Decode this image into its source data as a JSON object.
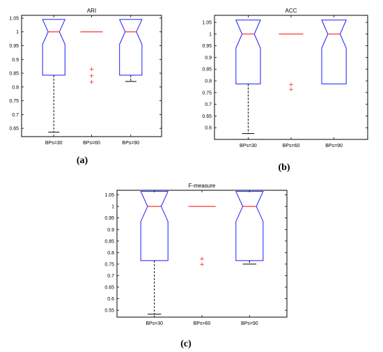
{
  "chart_data": [
    {
      "type": "boxplot",
      "title": "ARI",
      "caption": "(a)",
      "categories": [
        "BPs=30",
        "BPs=60",
        "BPs=90"
      ],
      "ylim": [
        0.62,
        1.06
      ],
      "yticks": [
        0.65,
        0.7,
        0.75,
        0.8,
        0.85,
        0.9,
        0.95,
        1,
        1.05
      ],
      "ytick_labels": [
        "0.65",
        "0.7",
        "0.75",
        "0.8",
        "0.85",
        "0.9",
        "0.95",
        "1",
        "1.05"
      ],
      "boxes": [
        {
          "q1": 0.843,
          "median": 1.0,
          "q3": 1.0,
          "whisker_low": 0.636,
          "whisker_high": 1.0,
          "notch_low": 0.955,
          "notch_high": 1.045,
          "outliers": []
        },
        {
          "q1": 1.0,
          "median": 1.0,
          "q3": 1.0,
          "whisker_low": 1.0,
          "whisker_high": 1.0,
          "notch_low": 1.0,
          "notch_high": 1.0,
          "outliers": [
            0.866,
            0.843,
            0.82
          ]
        },
        {
          "q1": 0.843,
          "median": 1.0,
          "q3": 1.0,
          "whisker_low": 0.82,
          "whisker_high": 1.0,
          "notch_low": 0.955,
          "notch_high": 1.045,
          "outliers": []
        }
      ]
    },
    {
      "type": "boxplot",
      "title": "ACC",
      "caption": "(b)",
      "categories": [
        "BPs=30",
        "BPs=60",
        "BPs=90"
      ],
      "ylim": [
        0.55,
        1.08
      ],
      "yticks": [
        0.6,
        0.65,
        0.7,
        0.75,
        0.8,
        0.85,
        0.9,
        0.95,
        1,
        1.05
      ],
      "ytick_labels": [
        "0.6",
        "0.65",
        "0.7",
        "0.75",
        "0.8",
        "0.85",
        "0.9",
        "0.95",
        "1",
        "1.05"
      ],
      "boxes": [
        {
          "q1": 0.787,
          "median": 1.0,
          "q3": 1.0,
          "whisker_low": 0.575,
          "whisker_high": 1.0,
          "notch_low": 0.94,
          "notch_high": 1.06,
          "outliers": []
        },
        {
          "q1": 1.0,
          "median": 1.0,
          "q3": 1.0,
          "whisker_low": 1.0,
          "whisker_high": 1.0,
          "notch_low": 1.0,
          "notch_high": 1.0,
          "outliers": [
            0.787,
            0.766
          ]
        },
        {
          "q1": 0.787,
          "median": 1.0,
          "q3": 1.0,
          "whisker_low": 0.787,
          "whisker_high": 1.0,
          "notch_low": 0.94,
          "notch_high": 1.06,
          "outliers": []
        }
      ]
    },
    {
      "type": "boxplot",
      "title": "F-measure",
      "caption": "(c)",
      "categories": [
        "BPs=30",
        "BPs=60",
        "BPs=90"
      ],
      "ylim": [
        0.52,
        1.07
      ],
      "yticks": [
        0.55,
        0.6,
        0.65,
        0.7,
        0.75,
        0.8,
        0.85,
        0.9,
        0.95,
        1,
        1.05
      ],
      "ytick_labels": [
        "0.55",
        "0.6",
        "0.65",
        "0.7",
        "0.75",
        "0.8",
        "0.85",
        "0.9",
        "0.95",
        "1",
        "1.05"
      ],
      "boxes": [
        {
          "q1": 0.765,
          "median": 1.0,
          "q3": 1.0,
          "whisker_low": 0.533,
          "whisker_high": 1.0,
          "notch_low": 0.935,
          "notch_high": 1.065,
          "outliers": []
        },
        {
          "q1": 1.0,
          "median": 1.0,
          "q3": 1.0,
          "whisker_low": 1.0,
          "whisker_high": 1.0,
          "notch_low": 1.0,
          "notch_high": 1.0,
          "outliers": [
            0.776,
            0.751
          ]
        },
        {
          "q1": 0.765,
          "median": 1.0,
          "q3": 1.0,
          "whisker_low": 0.75,
          "whisker_high": 1.0,
          "notch_low": 0.935,
          "notch_high": 1.065,
          "outliers": []
        }
      ]
    }
  ],
  "colors": {
    "box": "#1a1aff",
    "median": "#ff0000",
    "outlier": "#ff2020"
  }
}
